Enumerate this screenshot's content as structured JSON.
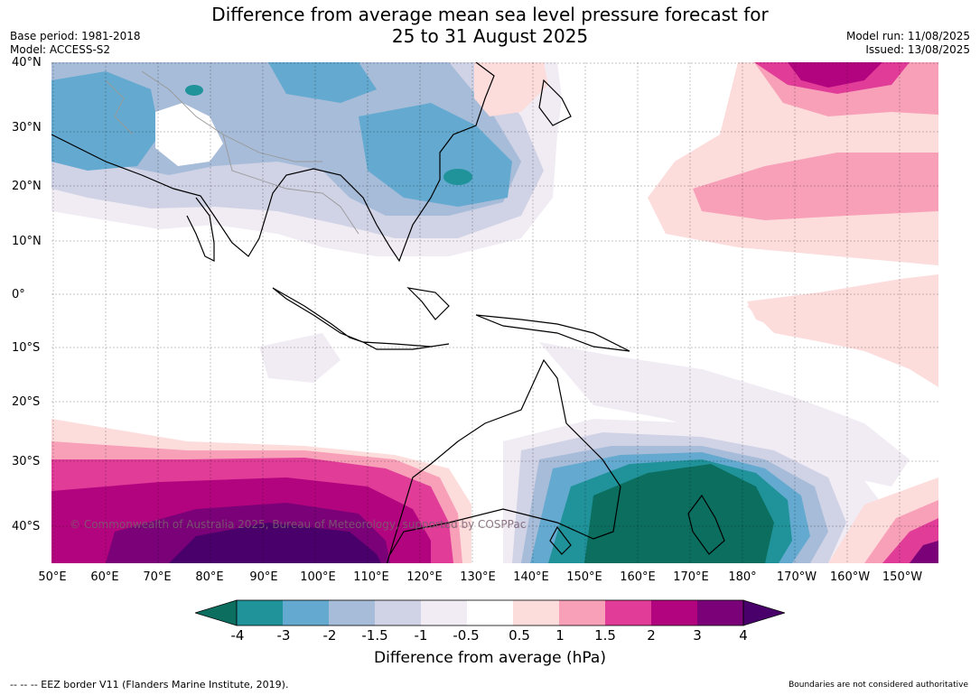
{
  "title_line1": "Difference from average mean sea level pressure forecast for",
  "title_line2": "25 to 31 August 2025",
  "base_period": "Base period: 1981-2018",
  "model": "Model: ACCESS-S2",
  "model_run": "Model run: 11/08/2025",
  "issued": "Issued: 13/08/2025",
  "lat_labels": [
    "40°N",
    "30°N",
    "20°N",
    "10°N",
    "0°",
    "10°S",
    "20°S",
    "30°S",
    "40°S"
  ],
  "lon_labels": [
    "50°E",
    "60°E",
    "70°E",
    "80°E",
    "90°E",
    "100°E",
    "110°E",
    "120°E",
    "130°E",
    "140°E",
    "150°E",
    "160°E",
    "170°E",
    "180°",
    "170°W",
    "160°W",
    "150°W"
  ],
  "colorbar": {
    "title": "Difference from average (hPa)",
    "ticks": [
      "-4",
      "-3",
      "-2",
      "-1.5",
      "-1",
      "-0.5",
      "0.5",
      "1",
      "1.5",
      "2",
      "3",
      "4"
    ],
    "colors": [
      "#0b6e5f",
      "#1f9399",
      "#64a9cf",
      "#a6bcd9",
      "#d0d2e5",
      "#f1ecf3",
      "#ffffff",
      "#fddcdc",
      "#f8a0b8",
      "#e03c98",
      "#b3047f",
      "#7a0177",
      "#4a006a"
    ]
  },
  "copyright": "© Commonwealth of Australia 2025, Bureau of Meteorology, supported by COSPPac",
  "footer_left": "--  --  -- EEZ border V11 (Flanders Marine Institute, 2019).",
  "footer_right": "Boundaries are not considered authoritative"
}
